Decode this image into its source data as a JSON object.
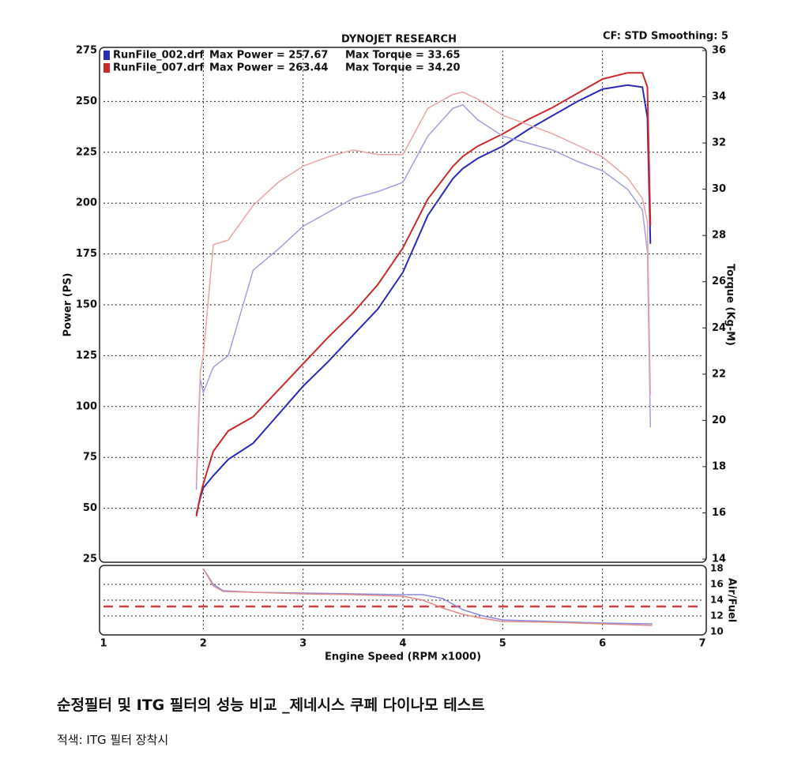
{
  "chart_data": [
    {
      "type": "line",
      "title": "DYNOJET RESEARCH",
      "subtitle": "CF: STD  Smoothing: 5",
      "x_label": "Engine Speed (RPM x1000)",
      "y_label": "Power (PS)",
      "y2_label": "Torque (Kg-M)",
      "xlim": [
        1,
        7
      ],
      "xticks": [
        1,
        2,
        3,
        4,
        5,
        6,
        7
      ],
      "ylim": [
        25,
        275
      ],
      "yticks": [
        25,
        50,
        75,
        100,
        125,
        150,
        175,
        200,
        225,
        250,
        275
      ],
      "y2lim": [
        14,
        36
      ],
      "y2ticks": [
        14,
        16,
        18,
        20,
        22,
        24,
        26,
        28,
        30,
        32,
        34,
        36
      ],
      "grid": true,
      "x": [
        1.93,
        1.97,
        2.0,
        2.1,
        2.25,
        2.5,
        2.75,
        3.0,
        3.25,
        3.5,
        3.75,
        4.0,
        4.25,
        4.5,
        4.6,
        4.75,
        5.0,
        5.25,
        5.5,
        5.75,
        6.0,
        6.25,
        6.4,
        6.45,
        6.48
      ],
      "series": [
        {
          "name": "RunFile_002.drf",
          "color": "#2a2ab8",
          "notes": [
            "Max Power = 257.67",
            "Max Torque = 33.65"
          ],
          "values": [
            47,
            55,
            60,
            66,
            74,
            82,
            96,
            110,
            122,
            135,
            148,
            166,
            194,
            212,
            217,
            222,
            228,
            236,
            243,
            250,
            256,
            258,
            257,
            242,
            180
          ]
        },
        {
          "name": "RunFile_007.drf",
          "color": "#cc2a2a",
          "notes": [
            "Max Power = 263.44",
            "Max Torque = 34.20"
          ],
          "values": [
            46,
            56,
            62,
            78,
            88,
            95,
            108,
            121,
            134,
            146,
            160,
            178,
            202,
            218,
            223,
            228,
            234,
            241,
            247,
            254,
            261,
            264,
            264,
            257,
            189
          ]
        },
        {
          "color": "#a0a0e0",
          "axis": "y2",
          "values": [
            17,
            21.8,
            21.2,
            22.3,
            22.8,
            26.5,
            27.4,
            28.4,
            29,
            29.6,
            29.9,
            30.3,
            32.3,
            33.5,
            33.65,
            33,
            32.3,
            32,
            31.7,
            31.2,
            30.8,
            30,
            29.1,
            27.3,
            19.7
          ]
        },
        {
          "color": "#eba3a3",
          "axis": "y2",
          "values": [
            17.3,
            22.1,
            22.8,
            27.6,
            27.8,
            29.3,
            30.3,
            31,
            31.4,
            31.7,
            31.5,
            31.5,
            33.5,
            34.1,
            34.2,
            33.9,
            33.2,
            32.8,
            32.4,
            31.9,
            31.4,
            30.5,
            29.6,
            28.6,
            21.1
          ]
        }
      ]
    },
    {
      "type": "line",
      "y_label": "Air/Fuel",
      "xlim": [
        1,
        7
      ],
      "xticks": [
        1,
        2,
        3,
        4,
        5,
        6,
        7
      ],
      "ylim": [
        10,
        18
      ],
      "yticks": [
        10,
        12,
        14,
        16,
        18
      ],
      "grid": true,
      "reference_lines": [
        {
          "value": 13.2,
          "color": "#d04040"
        }
      ],
      "x": [
        2.0,
        2.1,
        2.2,
        2.5,
        3.0,
        3.5,
        4.0,
        4.2,
        4.4,
        4.6,
        4.8,
        5.0,
        5.5,
        6.0,
        6.5
      ],
      "series": [
        {
          "color": "#8a8ae0",
          "values": [
            18,
            16,
            15.2,
            15,
            14.9,
            14.8,
            14.7,
            14.7,
            14.2,
            12.8,
            12,
            11.5,
            11.3,
            11.1,
            11.0
          ]
        },
        {
          "color": "#e08a8a",
          "values": [
            18,
            15.8,
            15.1,
            15,
            14.8,
            14.7,
            14.5,
            14,
            13,
            12.2,
            11.7,
            11.3,
            11.2,
            11.0,
            10.8
          ]
        }
      ]
    }
  ],
  "caption": {
    "title": "순정필터 및 ITG 필터의 성능 비교 _제네시스 쿠페 다이나모 테스트",
    "note": "적색: ITG 필터 장착시"
  }
}
